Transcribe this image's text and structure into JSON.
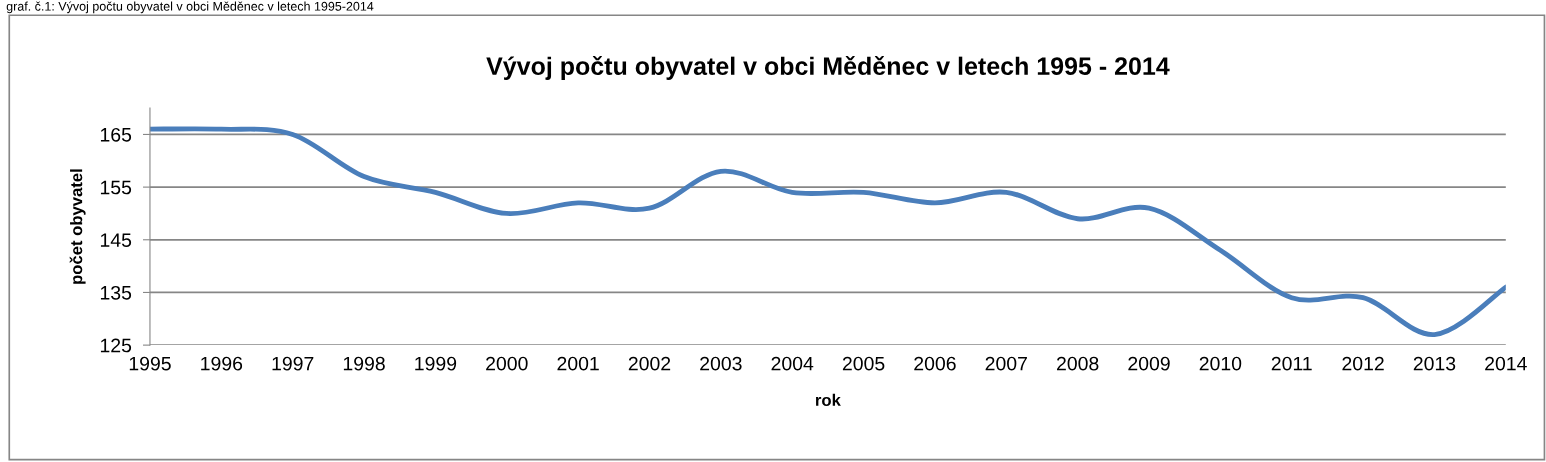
{
  "chart_data": {
    "type": "line",
    "title": "Vývoj počtu obyvatel v obci Měděnec v letech 1995 - 2014",
    "xlabel": "rok",
    "ylabel": "počet obyvatel",
    "annotations": [
      "graf. č.1: Vývoj počtu obyvatel v obci Měděnec v letech 1995-2014"
    ],
    "categories": [
      "1995",
      "1996",
      "1997",
      "1998",
      "1999",
      "2000",
      "2001",
      "2002",
      "2003",
      "2004",
      "2005",
      "2006",
      "2007",
      "2008",
      "2009",
      "2010",
      "2011",
      "2012",
      "2013",
      "2014"
    ],
    "series": [
      {
        "color": "#4a7ebb",
        "values": [
          166,
          166,
          165,
          157,
          154,
          150,
          152,
          151,
          158,
          154,
          154,
          152,
          154,
          149,
          151,
          143,
          134,
          134,
          127,
          136
        ]
      }
    ],
    "ylim": [
      125,
      170
    ],
    "yticks": [
      125,
      135,
      145,
      155,
      165
    ],
    "grid": "y",
    "marker": "none",
    "line_style": "solid"
  }
}
